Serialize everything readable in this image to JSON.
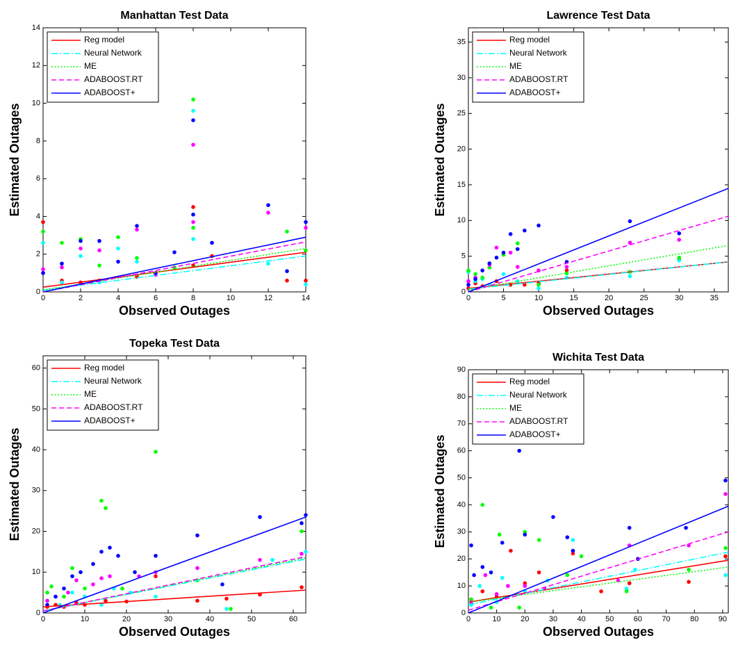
{
  "chart_data": [
    {
      "type": "scatter",
      "title": "Manhattan Test Data",
      "x_label": "Observed Outages",
      "y_label": "Estimated Outages",
      "xlim": [
        0,
        14
      ],
      "ylim": [
        0,
        14
      ],
      "xticks": [
        0,
        2,
        4,
        6,
        8,
        10,
        12,
        14
      ],
      "yticks": [
        0,
        2,
        4,
        6,
        8,
        10,
        12,
        14
      ],
      "series": [
        {
          "name": "Reg model",
          "color": "#ff0000",
          "style": "solid",
          "line_x": [
            0,
            14
          ],
          "line_values": [
            0.25,
            2.1
          ],
          "x": [
            0,
            0,
            1,
            2,
            3,
            5,
            8,
            8,
            9,
            13,
            14
          ],
          "values": [
            3.7,
            1.0,
            0.6,
            0.5,
            0.6,
            0.8,
            4.5,
            1.4,
            1.9,
            0.6,
            0.6
          ]
        },
        {
          "name": "Neural Network",
          "color": "#00ffff",
          "style": "dashdot",
          "line_x": [
            0,
            14
          ],
          "line_values": [
            0.1,
            1.9
          ],
          "x": [
            0,
            1,
            2,
            3,
            4,
            5,
            8,
            8,
            12,
            14
          ],
          "values": [
            2.6,
            0.5,
            1.9,
            0.5,
            2.3,
            1.6,
            9.6,
            2.8,
            1.5,
            0.4
          ]
        },
        {
          "name": "ME",
          "color": "#00ff00",
          "style": "dotted",
          "line_x": [
            0,
            14
          ],
          "line_values": [
            0.1,
            2.3
          ],
          "x": [
            0,
            1,
            2,
            3,
            4,
            5,
            7,
            8,
            8,
            13,
            14
          ],
          "values": [
            3.2,
            2.6,
            2.8,
            1.4,
            2.9,
            1.8,
            1.3,
            10.2,
            3.4,
            3.2,
            2.2
          ]
        },
        {
          "name": "ADABOOST.RT",
          "color": "#ff00ff",
          "style": "dashed",
          "line_x": [
            0,
            14
          ],
          "line_values": [
            0,
            2.65
          ],
          "x": [
            0,
            1,
            2,
            3,
            5,
            6,
            8,
            8,
            12,
            14
          ],
          "values": [
            1.2,
            1.3,
            2.3,
            2.2,
            3.3,
            0.9,
            7.8,
            3.7,
            4.2,
            3.4
          ]
        },
        {
          "name": "ADABOOST+",
          "color": "#0000ff",
          "style": "solid",
          "line_x": [
            0,
            14
          ],
          "line_values": [
            0,
            2.9
          ],
          "x": [
            0,
            1,
            2,
            3,
            4,
            5,
            6,
            7,
            8,
            8,
            9,
            12,
            13,
            14
          ],
          "values": [
            1.0,
            1.5,
            2.7,
            2.7,
            1.6,
            3.5,
            1.0,
            2.1,
            9.1,
            4.1,
            2.6,
            4.6,
            1.1,
            3.7
          ]
        }
      ]
    },
    {
      "type": "scatter",
      "title": "Lawrence Test Data",
      "x_label": "Observed Outages",
      "y_label": "Estimated Outages",
      "xlim": [
        0,
        37
      ],
      "ylim": [
        0,
        37
      ],
      "xticks": [
        0,
        5,
        10,
        15,
        20,
        25,
        30,
        35
      ],
      "yticks": [
        0,
        5,
        10,
        15,
        20,
        25,
        30,
        35
      ],
      "series": [
        {
          "name": "Reg model",
          "color": "#ff0000",
          "style": "solid",
          "line_x": [
            0,
            37
          ],
          "line_values": [
            0.5,
            4.2
          ],
          "x": [
            0,
            1,
            2,
            4,
            6,
            8,
            10,
            14,
            23,
            30
          ],
          "values": [
            0.5,
            1.2,
            0.8,
            1.5,
            1.0,
            1.0,
            1.2,
            3.0,
            2.8,
            4.6
          ]
        },
        {
          "name": "Neural Network",
          "color": "#00ffff",
          "style": "dashdot",
          "line_x": [
            0,
            37
          ],
          "line_values": [
            0.4,
            4.2
          ],
          "x": [
            0,
            1,
            2,
            3,
            5,
            7,
            10,
            14,
            23,
            30
          ],
          "values": [
            2.8,
            1.5,
            1.8,
            1.0,
            2.5,
            1.5,
            0.5,
            2.0,
            2.2,
            4.4
          ]
        },
        {
          "name": "ME",
          "color": "#00ff00",
          "style": "dotted",
          "line_x": [
            0,
            37
          ],
          "line_values": [
            0.3,
            6.5
          ],
          "x": [
            0,
            1,
            2,
            3,
            5,
            7,
            10,
            14,
            23,
            30
          ],
          "values": [
            3.0,
            2.5,
            2.0,
            3.4,
            5.2,
            6.8,
            1.0,
            2.6,
            2.8,
            4.8
          ]
        },
        {
          "name": "ADABOOST.RT",
          "color": "#ff00ff",
          "style": "dashed",
          "line_x": [
            0,
            37
          ],
          "line_values": [
            0,
            10.6
          ],
          "x": [
            0,
            1,
            2,
            3,
            4,
            6,
            7,
            10,
            14,
            23,
            30
          ],
          "values": [
            1.5,
            2.0,
            3.0,
            3.8,
            6.2,
            5.5,
            3.5,
            3.0,
            3.5,
            6.9,
            7.3
          ]
        },
        {
          "name": "ADABOOST+",
          "color": "#0000ff",
          "style": "solid",
          "line_x": [
            0,
            37
          ],
          "line_values": [
            0,
            14.5
          ],
          "x": [
            0,
            1,
            2,
            3,
            4,
            5,
            6,
            7,
            8,
            10,
            14,
            23,
            30
          ],
          "values": [
            1.0,
            1.8,
            3.0,
            4.0,
            4.8,
            5.5,
            8.1,
            6.0,
            8.6,
            9.3,
            4.2,
            9.9,
            8.2
          ]
        }
      ]
    },
    {
      "type": "scatter",
      "title": "Topeka Test Data",
      "x_label": "Observed Outages",
      "y_label": "Estimated Outages",
      "xlim": [
        0,
        63
      ],
      "ylim": [
        0,
        63
      ],
      "xticks": [
        0,
        10,
        20,
        30,
        40,
        50,
        60
      ],
      "yticks": [
        0,
        10,
        20,
        30,
        40,
        50,
        60
      ],
      "series": [
        {
          "name": "Reg model",
          "color": "#ff0000",
          "style": "solid",
          "line_x": [
            0,
            63
          ],
          "line_values": [
            1.5,
            5.6
          ],
          "x": [
            1,
            3,
            5,
            8,
            10,
            15,
            20,
            27,
            37,
            44,
            52,
            62
          ],
          "values": [
            1.5,
            2,
            1.5,
            2.5,
            2,
            3,
            2.8,
            9,
            3,
            3.5,
            4.5,
            6.3
          ]
        },
        {
          "name": "Neural Network",
          "color": "#00ffff",
          "style": "dashdot",
          "line_x": [
            0,
            63
          ],
          "line_values": [
            0.5,
            13.2
          ],
          "x": [
            1,
            4,
            7,
            10,
            14,
            17,
            21,
            27,
            37,
            44,
            55,
            63
          ],
          "values": [
            3,
            2,
            5,
            4,
            2,
            6,
            5,
            4,
            11,
            1,
            13,
            15
          ]
        },
        {
          "name": "ME",
          "color": "#00ff00",
          "style": "dotted",
          "line_x": [
            0,
            63
          ],
          "line_values": [
            0.5,
            13.5
          ],
          "x": [
            1,
            2,
            5,
            7,
            10,
            14,
            15,
            19,
            27,
            37,
            45,
            62
          ],
          "values": [
            5,
            6.5,
            4,
            11,
            6,
            27.5,
            25.7,
            6,
            39.5,
            8,
            1,
            20
          ]
        },
        {
          "name": "ADABOOST.RT",
          "color": "#ff00ff",
          "style": "dashed",
          "line_x": [
            0,
            63
          ],
          "line_values": [
            0.5,
            13.8
          ],
          "x": [
            1,
            3,
            6,
            8,
            12,
            14,
            16,
            23,
            27,
            37,
            52,
            62
          ],
          "values": [
            3,
            4,
            5,
            8,
            7,
            8.5,
            9,
            9,
            10,
            11,
            13,
            14.5
          ]
        },
        {
          "name": "ADABOOST+",
          "color": "#0000ff",
          "style": "solid",
          "line_x": [
            0,
            63
          ],
          "line_values": [
            0,
            23.5
          ],
          "x": [
            1,
            3,
            5,
            7,
            9,
            12,
            14,
            16,
            18,
            22,
            27,
            37,
            43,
            52,
            62,
            63
          ],
          "values": [
            2,
            4,
            6,
            9,
            10,
            12,
            15,
            16,
            14,
            10,
            14,
            19,
            7,
            23.5,
            22,
            24
          ]
        }
      ]
    },
    {
      "type": "scatter",
      "title": "Wichita Test Data",
      "x_label": "Observed Outages",
      "y_label": "Estimated Outages",
      "xlim": [
        0,
        92
      ],
      "ylim": [
        0,
        90
      ],
      "xticks": [
        0,
        10,
        20,
        30,
        40,
        50,
        60,
        70,
        80,
        90
      ],
      "yticks": [
        0,
        10,
        20,
        30,
        40,
        50,
        60,
        70,
        80,
        90
      ],
      "series": [
        {
          "name": "Reg model",
          "color": "#ff0000",
          "style": "solid",
          "line_x": [
            0,
            92
          ],
          "line_values": [
            4,
            19.5
          ],
          "x": [
            1,
            5,
            10,
            15,
            20,
            25,
            37,
            47,
            57,
            78,
            91
          ],
          "values": [
            5,
            8,
            6,
            23,
            11,
            15,
            22,
            8,
            11,
            11.5,
            21
          ]
        },
        {
          "name": "Neural Network",
          "color": "#00ffff",
          "style": "dashdot",
          "line_x": [
            0,
            92
          ],
          "line_values": [
            3,
            22.5
          ],
          "x": [
            1,
            4,
            10,
            12,
            20,
            28,
            37,
            56,
            59,
            91
          ],
          "values": [
            3,
            10,
            4,
            13,
            8,
            12,
            27,
            9,
            16,
            14
          ]
        },
        {
          "name": "ME",
          "color": "#00ff00",
          "style": "dotted",
          "line_x": [
            0,
            92
          ],
          "line_values": [
            4,
            17
          ],
          "x": [
            1,
            5,
            8,
            11,
            18,
            20,
            25,
            35,
            40,
            56,
            78,
            91
          ],
          "values": [
            5,
            40,
            2,
            29,
            2,
            30,
            27,
            14,
            21,
            8,
            16,
            24
          ]
        },
        {
          "name": "ADABOOST.RT",
          "color": "#ff00ff",
          "style": "dashed",
          "line_x": [
            0,
            92
          ],
          "line_values": [
            1,
            30
          ],
          "x": [
            1,
            6,
            10,
            14,
            20,
            27,
            37,
            53,
            57,
            78,
            91
          ],
          "values": [
            4,
            14,
            7,
            10,
            10,
            9,
            23,
            12,
            25,
            25,
            44
          ]
        },
        {
          "name": "ADABOOST+",
          "color": "#0000ff",
          "style": "solid",
          "line_x": [
            0,
            92
          ],
          "line_values": [
            0,
            39.5
          ],
          "x": [
            1,
            2,
            5,
            8,
            12,
            18,
            20,
            30,
            35,
            37,
            57,
            60,
            77,
            91
          ],
          "values": [
            25,
            14,
            17,
            15,
            26,
            60,
            29,
            35.5,
            28,
            23,
            31.5,
            20,
            31.5,
            49
          ]
        }
      ]
    }
  ]
}
